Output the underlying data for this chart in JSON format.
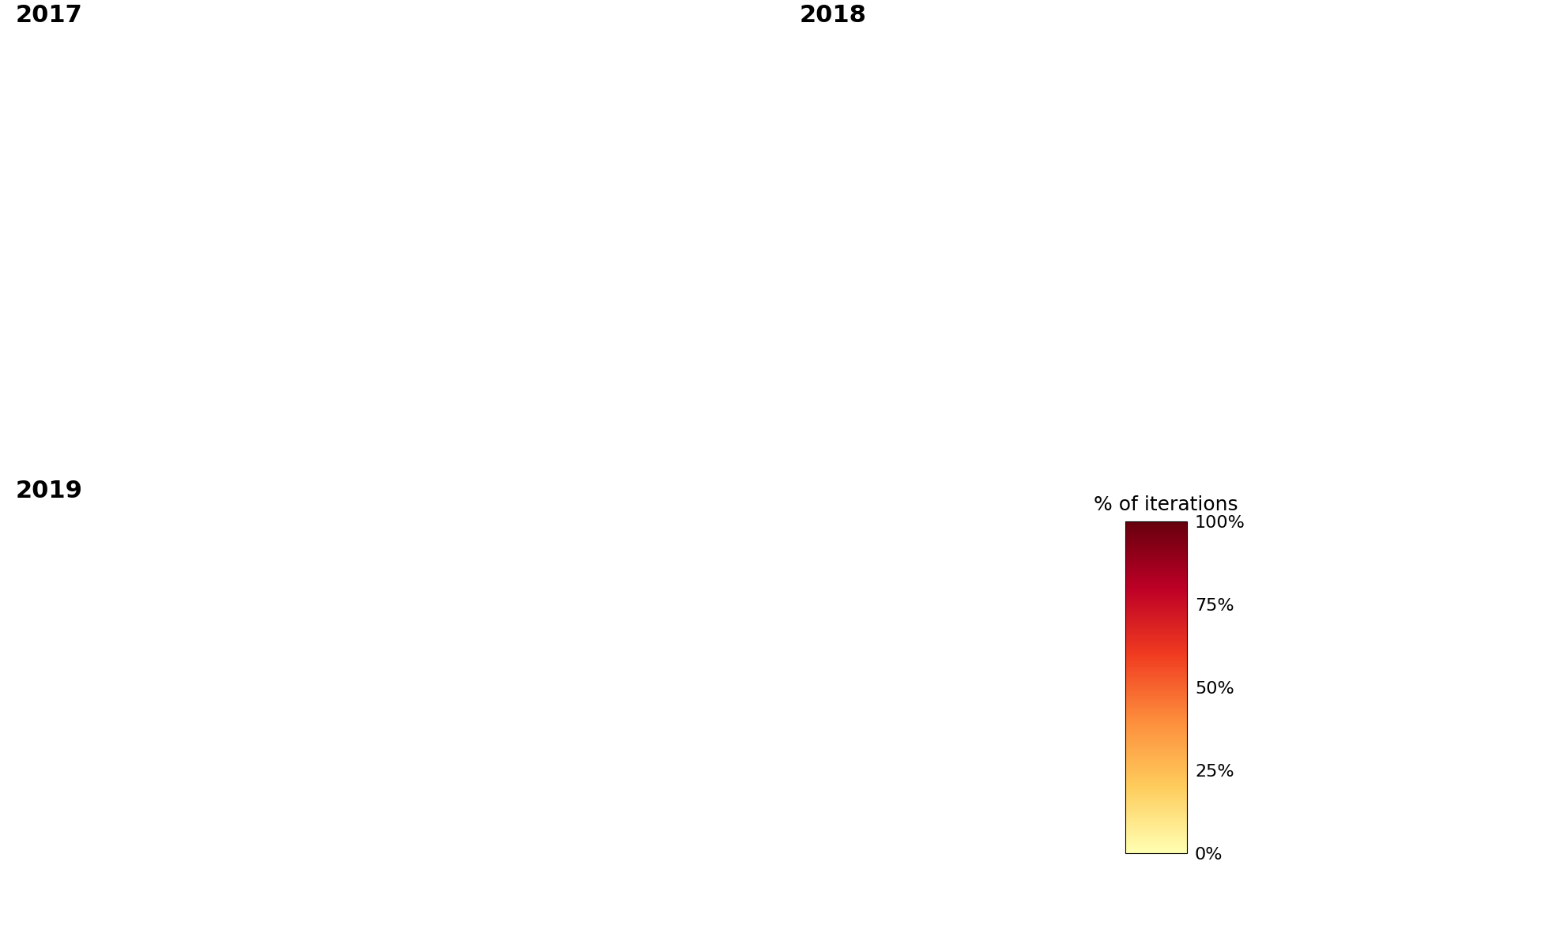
{
  "title_2017": "2017",
  "title_2018": "2018",
  "title_2019": "2019",
  "colorbar_title": "% of iterations",
  "colorbar_ticks": [
    0,
    25,
    50,
    75,
    100
  ],
  "colorbar_ticklabels": [
    "0%",
    "25%",
    "50%",
    "75%",
    "100%"
  ],
  "cmap_colors": [
    "#FFFFCC",
    "#FFEDA0",
    "#FED976",
    "#FEB24C",
    "#FD8D3C",
    "#FC4E2A",
    "#E31A1C",
    "#BD0026",
    "#800026"
  ],
  "background_color": "#FFFFFF",
  "title_fontsize": 22,
  "colorbar_label_fontsize": 18,
  "colorbar_tick_fontsize": 16,
  "fig_width": 19.5,
  "fig_height": 12.0,
  "dpi": 100,
  "seed_2017": 42,
  "seed_2018": 123,
  "seed_2019": 99
}
